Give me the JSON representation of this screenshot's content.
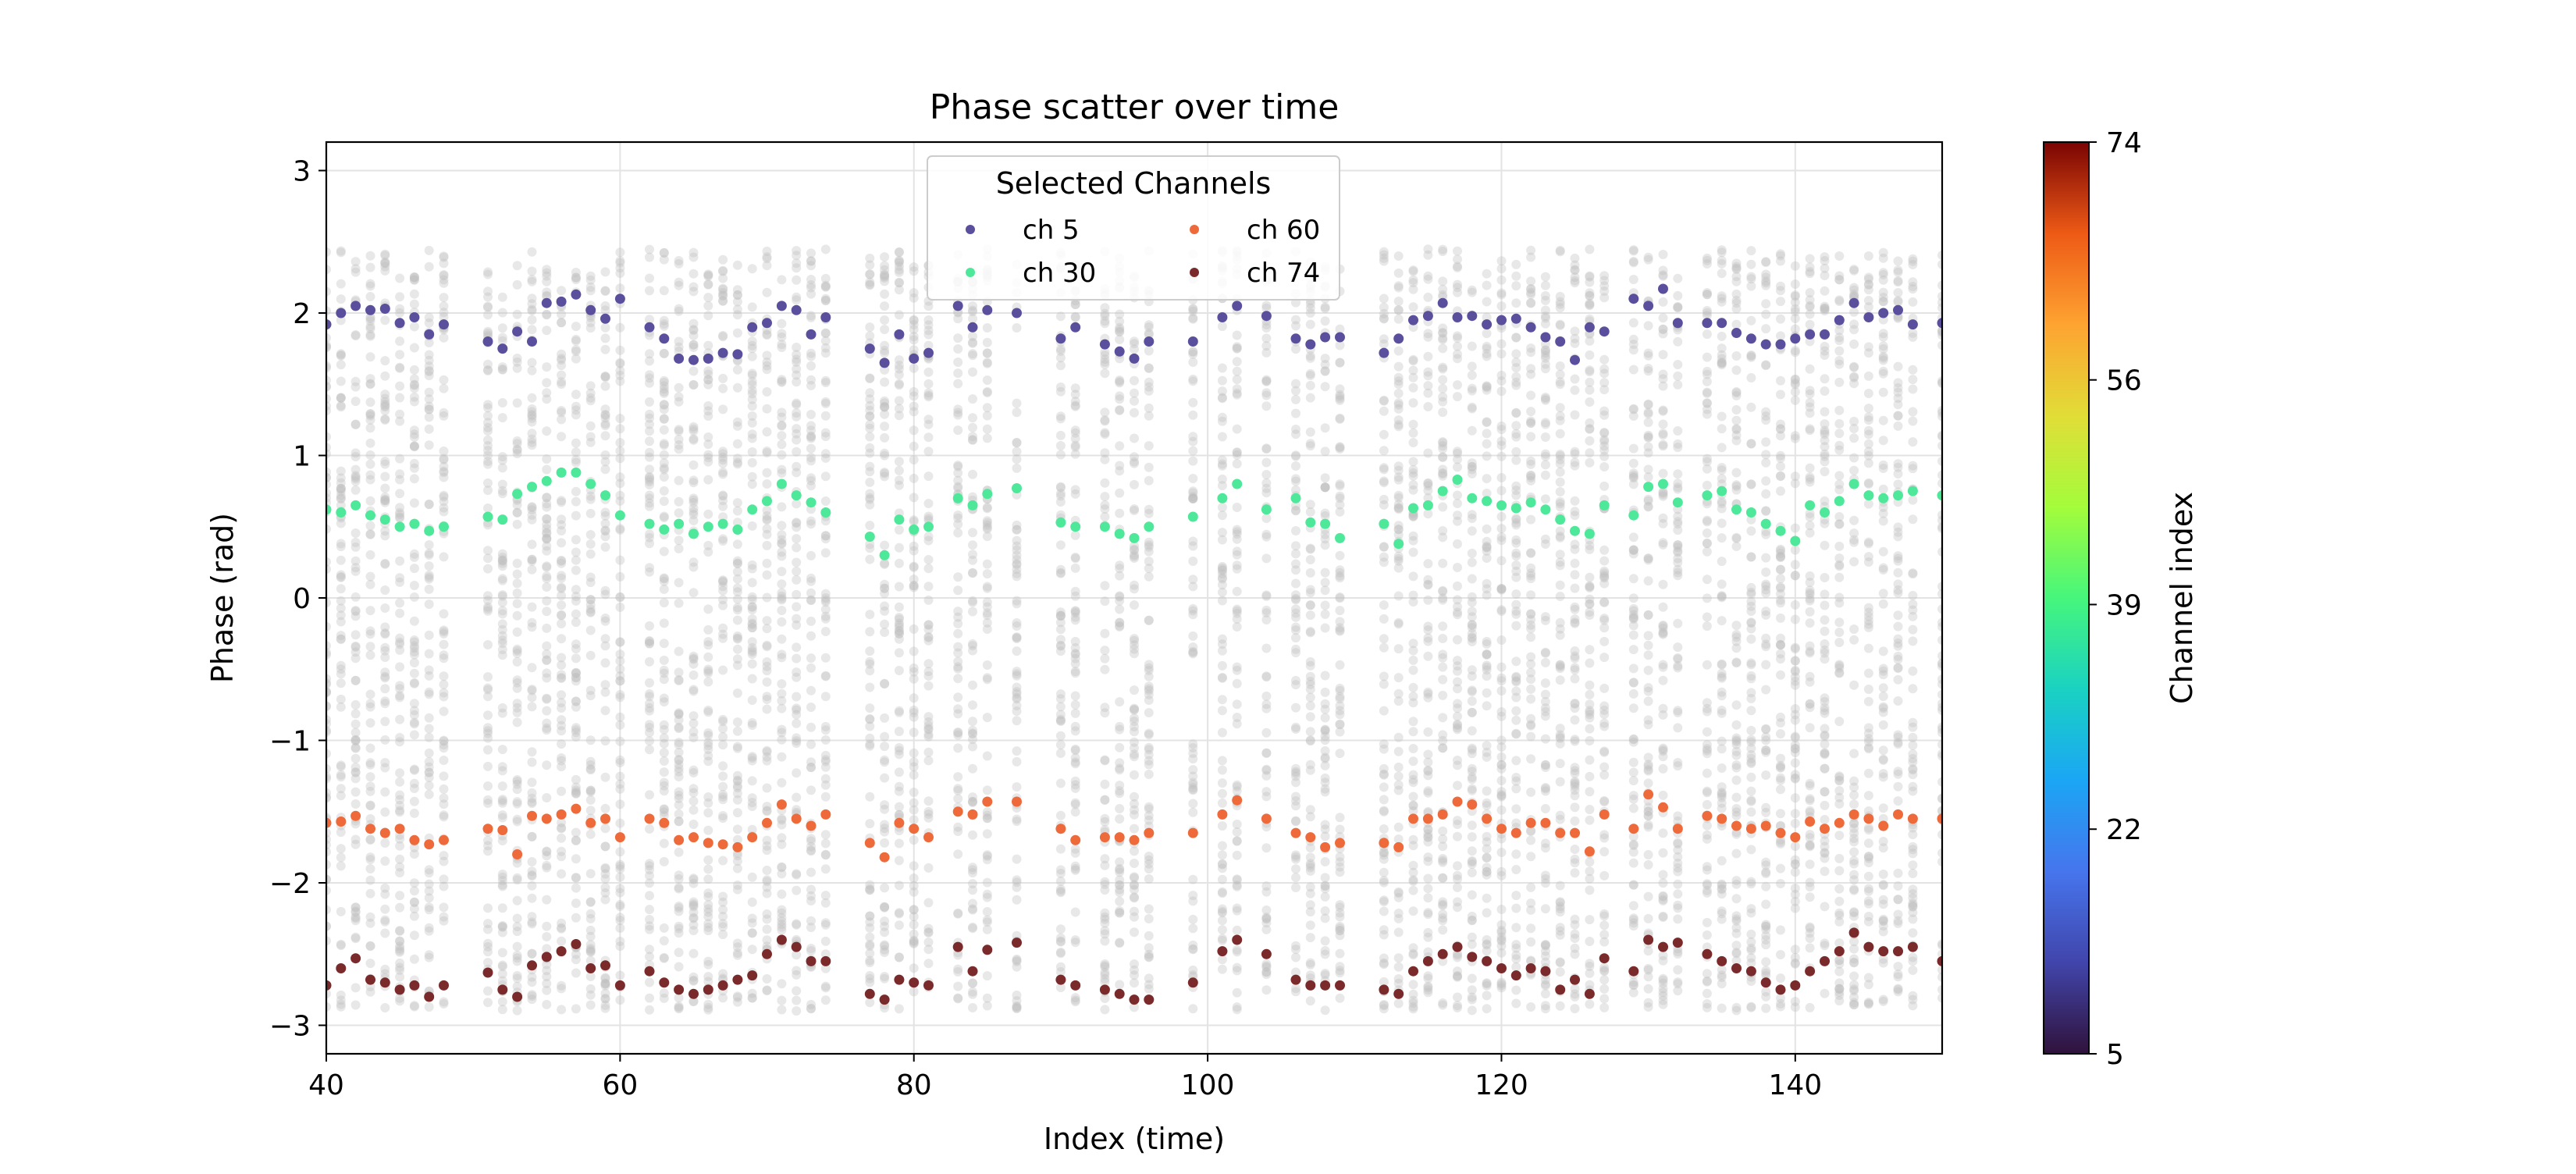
{
  "chart_data": {
    "type": "scatter",
    "title": "Phase scatter over time",
    "xlabel": "Index (time)",
    "ylabel": "Phase (rad)",
    "xlim": [
      40,
      150
    ],
    "ylim": [
      -3.2,
      3.2
    ],
    "xticks": [
      40,
      60,
      80,
      100,
      120,
      140
    ],
    "yticks": [
      -3,
      -2,
      -1,
      0,
      1,
      2,
      3
    ],
    "grid": true,
    "legend": {
      "title": "Selected Channels",
      "placement": "top-center",
      "ncol": 2,
      "entries": [
        "ch 5",
        "ch 30",
        "ch 60",
        "ch 74"
      ]
    },
    "colorbar": {
      "label": "Channel index",
      "colormap": "turbo",
      "range": [
        5,
        74
      ],
      "ticks": [
        5,
        22,
        39,
        56,
        74
      ]
    },
    "background_points": {
      "description_color": "#bdbdbd",
      "channels_per_index": 70,
      "y_range": [
        -2.9,
        2.45
      ]
    },
    "series": [
      {
        "name": "ch 5",
        "color": "#5a4f9c",
        "x": [
          40,
          41,
          42,
          43,
          44,
          45,
          46,
          47,
          48,
          51,
          52,
          53,
          54,
          55,
          56,
          57,
          58,
          59,
          60,
          62,
          63,
          64,
          65,
          66,
          67,
          68,
          69,
          70,
          71,
          72,
          73,
          74,
          77,
          78,
          79,
          80,
          81,
          83,
          84,
          85,
          87,
          90,
          91,
          93,
          94,
          95,
          96,
          99,
          101,
          102,
          104,
          106,
          107,
          108,
          109,
          112,
          113,
          114,
          115,
          116,
          117,
          118,
          119,
          120,
          121,
          122,
          123,
          124,
          125,
          126,
          127,
          129,
          130,
          131,
          132,
          134,
          135,
          136,
          137,
          138,
          139,
          140,
          141,
          142,
          143,
          144,
          145,
          146,
          147,
          148,
          150
        ],
        "y": [
          1.92,
          2.0,
          2.05,
          2.02,
          2.03,
          1.93,
          1.97,
          1.85,
          1.92,
          1.8,
          1.75,
          1.87,
          1.8,
          2.07,
          2.08,
          2.13,
          2.02,
          1.96,
          2.1,
          1.9,
          1.82,
          1.68,
          1.67,
          1.68,
          1.72,
          1.71,
          1.9,
          1.93,
          2.05,
          2.02,
          1.85,
          1.97,
          1.75,
          1.65,
          1.85,
          1.68,
          1.72,
          2.05,
          1.9,
          2.02,
          2.0,
          1.82,
          1.9,
          1.78,
          1.73,
          1.68,
          1.8,
          1.8,
          1.97,
          2.05,
          1.98,
          1.82,
          1.78,
          1.83,
          1.83,
          1.72,
          1.82,
          1.95,
          1.98,
          2.07,
          1.97,
          1.98,
          1.92,
          1.95,
          1.96,
          1.9,
          1.83,
          1.8,
          1.67,
          1.9,
          1.87,
          2.1,
          2.05,
          2.17,
          1.93,
          1.93,
          1.93,
          1.86,
          1.82,
          1.78,
          1.78,
          1.82,
          1.85,
          1.85,
          1.95,
          2.07,
          1.97,
          2.0,
          2.02,
          1.92,
          1.93
        ]
      },
      {
        "name": "ch 30",
        "color": "#4ee89a",
        "x": [
          40,
          41,
          42,
          43,
          44,
          45,
          46,
          47,
          48,
          51,
          52,
          53,
          54,
          55,
          56,
          57,
          58,
          59,
          60,
          62,
          63,
          64,
          65,
          66,
          67,
          68,
          69,
          70,
          71,
          72,
          73,
          74,
          77,
          78,
          79,
          80,
          81,
          83,
          84,
          85,
          87,
          90,
          91,
          93,
          94,
          95,
          96,
          99,
          101,
          102,
          104,
          106,
          107,
          108,
          109,
          112,
          113,
          114,
          115,
          116,
          117,
          118,
          119,
          120,
          121,
          122,
          123,
          124,
          125,
          126,
          127,
          129,
          130,
          131,
          132,
          134,
          135,
          136,
          137,
          138,
          139,
          140,
          141,
          142,
          143,
          144,
          145,
          146,
          147,
          148,
          150
        ],
        "y": [
          0.62,
          0.6,
          0.65,
          0.58,
          0.55,
          0.5,
          0.52,
          0.47,
          0.5,
          0.57,
          0.55,
          0.73,
          0.78,
          0.82,
          0.88,
          0.88,
          0.8,
          0.72,
          0.58,
          0.52,
          0.48,
          0.52,
          0.45,
          0.5,
          0.52,
          0.48,
          0.62,
          0.68,
          0.8,
          0.72,
          0.67,
          0.6,
          0.43,
          0.3,
          0.55,
          0.48,
          0.5,
          0.7,
          0.65,
          0.73,
          0.77,
          0.53,
          0.5,
          0.5,
          0.45,
          0.42,
          0.5,
          0.57,
          0.7,
          0.8,
          0.62,
          0.7,
          0.53,
          0.52,
          0.42,
          0.52,
          0.38,
          0.63,
          0.65,
          0.75,
          0.83,
          0.7,
          0.68,
          0.65,
          0.63,
          0.67,
          0.62,
          0.55,
          0.47,
          0.45,
          0.65,
          0.58,
          0.78,
          0.8,
          0.67,
          0.72,
          0.75,
          0.62,
          0.6,
          0.52,
          0.47,
          0.4,
          0.65,
          0.6,
          0.68,
          0.8,
          0.72,
          0.7,
          0.72,
          0.75,
          0.72
        ]
      },
      {
        "name": "ch 60",
        "color": "#ee6a3b",
        "x": [
          40,
          41,
          42,
          43,
          44,
          45,
          46,
          47,
          48,
          51,
          52,
          53,
          54,
          55,
          56,
          57,
          58,
          59,
          60,
          62,
          63,
          64,
          65,
          66,
          67,
          68,
          69,
          70,
          71,
          72,
          73,
          74,
          77,
          78,
          79,
          80,
          81,
          83,
          84,
          85,
          87,
          90,
          91,
          93,
          94,
          95,
          96,
          99,
          101,
          102,
          104,
          106,
          107,
          108,
          109,
          112,
          113,
          114,
          115,
          116,
          117,
          118,
          119,
          120,
          121,
          122,
          123,
          124,
          125,
          126,
          127,
          129,
          130,
          131,
          132,
          134,
          135,
          136,
          137,
          138,
          139,
          140,
          141,
          142,
          143,
          144,
          145,
          146,
          147,
          148,
          150
        ],
        "y": [
          -1.58,
          -1.57,
          -1.53,
          -1.62,
          -1.65,
          -1.62,
          -1.7,
          -1.73,
          -1.7,
          -1.62,
          -1.63,
          -1.8,
          -1.53,
          -1.55,
          -1.52,
          -1.48,
          -1.58,
          -1.55,
          -1.68,
          -1.55,
          -1.58,
          -1.7,
          -1.68,
          -1.72,
          -1.73,
          -1.75,
          -1.68,
          -1.58,
          -1.45,
          -1.55,
          -1.6,
          -1.52,
          -1.72,
          -1.82,
          -1.58,
          -1.62,
          -1.68,
          -1.5,
          -1.52,
          -1.43,
          -1.43,
          -1.62,
          -1.7,
          -1.68,
          -1.68,
          -1.7,
          -1.65,
          -1.65,
          -1.52,
          -1.42,
          -1.55,
          -1.65,
          -1.68,
          -1.75,
          -1.72,
          -1.72,
          -1.75,
          -1.55,
          -1.55,
          -1.52,
          -1.43,
          -1.45,
          -1.55,
          -1.62,
          -1.65,
          -1.58,
          -1.58,
          -1.65,
          -1.65,
          -1.78,
          -1.52,
          -1.62,
          -1.38,
          -1.47,
          -1.62,
          -1.53,
          -1.55,
          -1.6,
          -1.62,
          -1.6,
          -1.65,
          -1.68,
          -1.57,
          -1.62,
          -1.58,
          -1.52,
          -1.55,
          -1.6,
          -1.52,
          -1.55,
          -1.55
        ]
      },
      {
        "name": "ch 74",
        "color": "#7a2a2a",
        "x": [
          40,
          41,
          42,
          43,
          44,
          45,
          46,
          47,
          48,
          51,
          52,
          53,
          54,
          55,
          56,
          57,
          58,
          59,
          60,
          62,
          63,
          64,
          65,
          66,
          67,
          68,
          69,
          70,
          71,
          72,
          73,
          74,
          77,
          78,
          79,
          80,
          81,
          83,
          84,
          85,
          87,
          90,
          91,
          93,
          94,
          95,
          96,
          99,
          101,
          102,
          104,
          106,
          107,
          108,
          109,
          112,
          113,
          114,
          115,
          116,
          117,
          118,
          119,
          120,
          121,
          122,
          123,
          124,
          125,
          126,
          127,
          129,
          130,
          131,
          132,
          134,
          135,
          136,
          137,
          138,
          139,
          140,
          141,
          142,
          143,
          144,
          145,
          146,
          147,
          148,
          150
        ],
        "y": [
          -2.72,
          -2.6,
          -2.53,
          -2.68,
          -2.7,
          -2.75,
          -2.72,
          -2.8,
          -2.72,
          -2.63,
          -2.75,
          -2.8,
          -2.58,
          -2.52,
          -2.48,
          -2.43,
          -2.6,
          -2.58,
          -2.72,
          -2.62,
          -2.7,
          -2.75,
          -2.78,
          -2.75,
          -2.72,
          -2.68,
          -2.65,
          -2.5,
          -2.4,
          -2.45,
          -2.55,
          -2.55,
          -2.78,
          -2.82,
          -2.68,
          -2.7,
          -2.72,
          -2.45,
          -2.62,
          -2.47,
          -2.42,
          -2.68,
          -2.72,
          -2.75,
          -2.78,
          -2.82,
          -2.82,
          -2.7,
          -2.48,
          -2.4,
          -2.5,
          -2.68,
          -2.72,
          -2.72,
          -2.72,
          -2.75,
          -2.78,
          -2.62,
          -2.55,
          -2.5,
          -2.45,
          -2.52,
          -2.55,
          -2.6,
          -2.65,
          -2.6,
          -2.62,
          -2.75,
          -2.68,
          -2.78,
          -2.53,
          -2.62,
          -2.4,
          -2.45,
          -2.42,
          -2.5,
          -2.55,
          -2.6,
          -2.62,
          -2.7,
          -2.75,
          -2.72,
          -2.62,
          -2.55,
          -2.48,
          -2.35,
          -2.45,
          -2.48,
          -2.48,
          -2.45,
          -2.55
        ]
      }
    ]
  }
}
